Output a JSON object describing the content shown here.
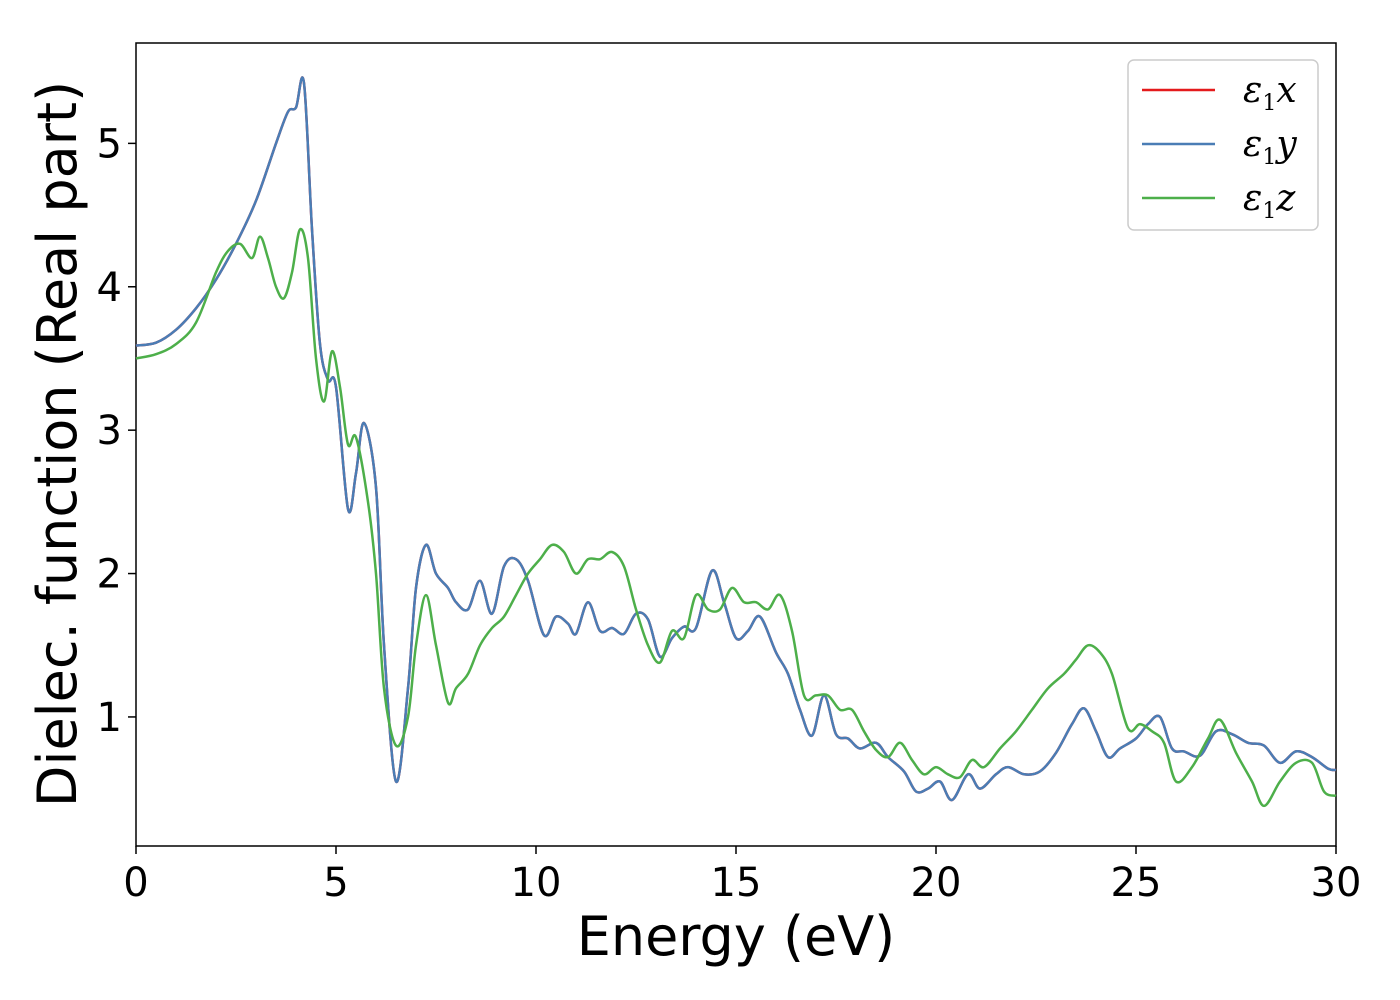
{
  "chart_data": {
    "type": "line",
    "xlabel": "Energy (eV)",
    "ylabel": "Dielec. function (Real part)",
    "xlim": [
      0,
      30
    ],
    "ylim": [
      0.1,
      5.7
    ],
    "xticks": [
      "0",
      "5",
      "10",
      "15",
      "20",
      "25",
      "30"
    ],
    "yticks": [
      "1",
      "2",
      "3",
      "4",
      "5"
    ],
    "legend_position": "top-right",
    "grid": false,
    "series": [
      {
        "name": "ε1x",
        "color": "#e41a1c",
        "x": [
          0,
          0.5,
          1,
          1.5,
          2,
          2.5,
          3,
          3.5,
          3.8,
          4.0,
          4.2,
          4.4,
          4.6,
          4.8,
          5.0,
          5.3,
          5.5,
          5.7,
          6.0,
          6.2,
          6.5,
          6.8,
          7.0,
          7.25,
          7.5,
          7.8,
          8.0,
          8.3,
          8.6,
          8.9,
          9.2,
          9.5,
          9.8,
          10.2,
          10.5,
          10.8,
          11.0,
          11.3,
          11.6,
          11.9,
          12.2,
          12.5,
          12.8,
          13.1,
          13.4,
          13.7,
          14.0,
          14.4,
          14.7,
          15.0,
          15.3,
          15.6,
          16.0,
          16.3,
          16.6,
          16.9,
          17.2,
          17.5,
          17.8,
          18.1,
          18.5,
          18.8,
          19.2,
          19.5,
          19.8,
          20.1,
          20.4,
          20.8,
          21.1,
          21.5,
          21.8,
          22.2,
          22.6,
          23.0,
          23.4,
          23.7,
          24.0,
          24.3,
          24.6,
          25.0,
          25.3,
          25.6,
          25.9,
          26.2,
          26.6,
          27.0,
          27.4,
          27.8,
          28.2,
          28.6,
          29.0,
          29.4,
          29.8,
          30.0
        ],
        "values": [
          3.59,
          3.61,
          3.7,
          3.85,
          4.05,
          4.3,
          4.6,
          5.0,
          5.22,
          5.25,
          5.42,
          4.4,
          3.6,
          3.35,
          3.3,
          2.45,
          2.7,
          3.05,
          2.6,
          1.5,
          0.55,
          1.2,
          1.9,
          2.2,
          2.0,
          1.9,
          1.8,
          1.75,
          1.95,
          1.72,
          2.05,
          2.1,
          1.95,
          1.57,
          1.7,
          1.65,
          1.58,
          1.8,
          1.6,
          1.62,
          1.58,
          1.72,
          1.68,
          1.42,
          1.55,
          1.63,
          1.62,
          2.02,
          1.8,
          1.55,
          1.6,
          1.7,
          1.45,
          1.3,
          1.05,
          0.87,
          1.15,
          0.88,
          0.85,
          0.78,
          0.82,
          0.72,
          0.62,
          0.48,
          0.5,
          0.55,
          0.42,
          0.6,
          0.5,
          0.6,
          0.65,
          0.6,
          0.62,
          0.75,
          0.95,
          1.06,
          0.9,
          0.72,
          0.78,
          0.85,
          0.95,
          1.0,
          0.78,
          0.76,
          0.73,
          0.9,
          0.88,
          0.82,
          0.8,
          0.68,
          0.76,
          0.72,
          0.64,
          0.63
        ]
      },
      {
        "name": "ε1y",
        "color": "#4a7db5",
        "x": [
          0,
          0.5,
          1,
          1.5,
          2,
          2.5,
          3,
          3.5,
          3.8,
          4.0,
          4.2,
          4.4,
          4.6,
          4.8,
          5.0,
          5.3,
          5.5,
          5.7,
          6.0,
          6.2,
          6.5,
          6.8,
          7.0,
          7.25,
          7.5,
          7.8,
          8.0,
          8.3,
          8.6,
          8.9,
          9.2,
          9.5,
          9.8,
          10.2,
          10.5,
          10.8,
          11.0,
          11.3,
          11.6,
          11.9,
          12.2,
          12.5,
          12.8,
          13.1,
          13.4,
          13.7,
          14.0,
          14.4,
          14.7,
          15.0,
          15.3,
          15.6,
          16.0,
          16.3,
          16.6,
          16.9,
          17.2,
          17.5,
          17.8,
          18.1,
          18.5,
          18.8,
          19.2,
          19.5,
          19.8,
          20.1,
          20.4,
          20.8,
          21.1,
          21.5,
          21.8,
          22.2,
          22.6,
          23.0,
          23.4,
          23.7,
          24.0,
          24.3,
          24.6,
          25.0,
          25.3,
          25.6,
          25.9,
          26.2,
          26.6,
          27.0,
          27.4,
          27.8,
          28.2,
          28.6,
          29.0,
          29.4,
          29.8,
          30.0
        ],
        "values": [
          3.59,
          3.61,
          3.7,
          3.85,
          4.05,
          4.3,
          4.6,
          5.0,
          5.22,
          5.25,
          5.42,
          4.4,
          3.6,
          3.35,
          3.3,
          2.45,
          2.7,
          3.05,
          2.6,
          1.5,
          0.55,
          1.2,
          1.9,
          2.2,
          2.0,
          1.9,
          1.8,
          1.75,
          1.95,
          1.72,
          2.05,
          2.1,
          1.95,
          1.57,
          1.7,
          1.65,
          1.58,
          1.8,
          1.6,
          1.62,
          1.58,
          1.72,
          1.68,
          1.42,
          1.55,
          1.63,
          1.62,
          2.02,
          1.8,
          1.55,
          1.6,
          1.7,
          1.45,
          1.3,
          1.05,
          0.87,
          1.15,
          0.88,
          0.85,
          0.78,
          0.82,
          0.72,
          0.62,
          0.48,
          0.5,
          0.55,
          0.42,
          0.6,
          0.5,
          0.6,
          0.65,
          0.6,
          0.62,
          0.75,
          0.95,
          1.06,
          0.9,
          0.72,
          0.78,
          0.85,
          0.95,
          1.0,
          0.78,
          0.76,
          0.73,
          0.9,
          0.88,
          0.82,
          0.8,
          0.68,
          0.76,
          0.72,
          0.64,
          0.63
        ]
      },
      {
        "name": "ε1z",
        "color": "#4daf4a",
        "x": [
          0,
          0.5,
          1,
          1.5,
          2,
          2.3,
          2.6,
          2.9,
          3.1,
          3.3,
          3.5,
          3.7,
          3.9,
          4.1,
          4.3,
          4.5,
          4.7,
          4.9,
          5.1,
          5.3,
          5.5,
          5.8,
          6.0,
          6.2,
          6.5,
          6.8,
          7.0,
          7.25,
          7.5,
          7.8,
          8.0,
          8.3,
          8.6,
          8.9,
          9.2,
          9.5,
          9.8,
          10.1,
          10.4,
          10.7,
          11.0,
          11.3,
          11.6,
          11.9,
          12.2,
          12.5,
          12.8,
          13.1,
          13.4,
          13.7,
          14.0,
          14.3,
          14.6,
          14.9,
          15.2,
          15.5,
          15.8,
          16.1,
          16.4,
          16.7,
          17.0,
          17.3,
          17.6,
          17.9,
          18.2,
          18.5,
          18.8,
          19.1,
          19.4,
          19.7,
          20.0,
          20.3,
          20.6,
          20.9,
          21.2,
          21.6,
          22.0,
          22.4,
          22.8,
          23.2,
          23.5,
          23.8,
          24.1,
          24.4,
          24.8,
          25.1,
          25.4,
          25.7,
          26.0,
          26.4,
          26.8,
          27.1,
          27.5,
          27.9,
          28.2,
          28.6,
          29.0,
          29.4,
          29.7,
          30.0
        ],
        "values": [
          3.5,
          3.53,
          3.6,
          3.75,
          4.1,
          4.25,
          4.3,
          4.2,
          4.35,
          4.2,
          4.0,
          3.92,
          4.1,
          4.4,
          4.2,
          3.5,
          3.2,
          3.55,
          3.3,
          2.9,
          2.95,
          2.5,
          2.0,
          1.2,
          0.8,
          1.0,
          1.5,
          1.85,
          1.5,
          1.1,
          1.2,
          1.3,
          1.5,
          1.62,
          1.7,
          1.85,
          2.0,
          2.1,
          2.2,
          2.15,
          2.0,
          2.1,
          2.1,
          2.15,
          2.05,
          1.75,
          1.5,
          1.38,
          1.6,
          1.55,
          1.85,
          1.75,
          1.75,
          1.9,
          1.8,
          1.8,
          1.75,
          1.85,
          1.6,
          1.15,
          1.15,
          1.15,
          1.05,
          1.05,
          0.9,
          0.77,
          0.72,
          0.82,
          0.7,
          0.6,
          0.65,
          0.6,
          0.58,
          0.7,
          0.65,
          0.78,
          0.9,
          1.05,
          1.2,
          1.3,
          1.4,
          1.5,
          1.45,
          1.3,
          0.92,
          0.95,
          0.9,
          0.82,
          0.55,
          0.65,
          0.85,
          0.98,
          0.75,
          0.55,
          0.38,
          0.55,
          0.68,
          0.68,
          0.48,
          0.45
        ]
      }
    ]
  }
}
